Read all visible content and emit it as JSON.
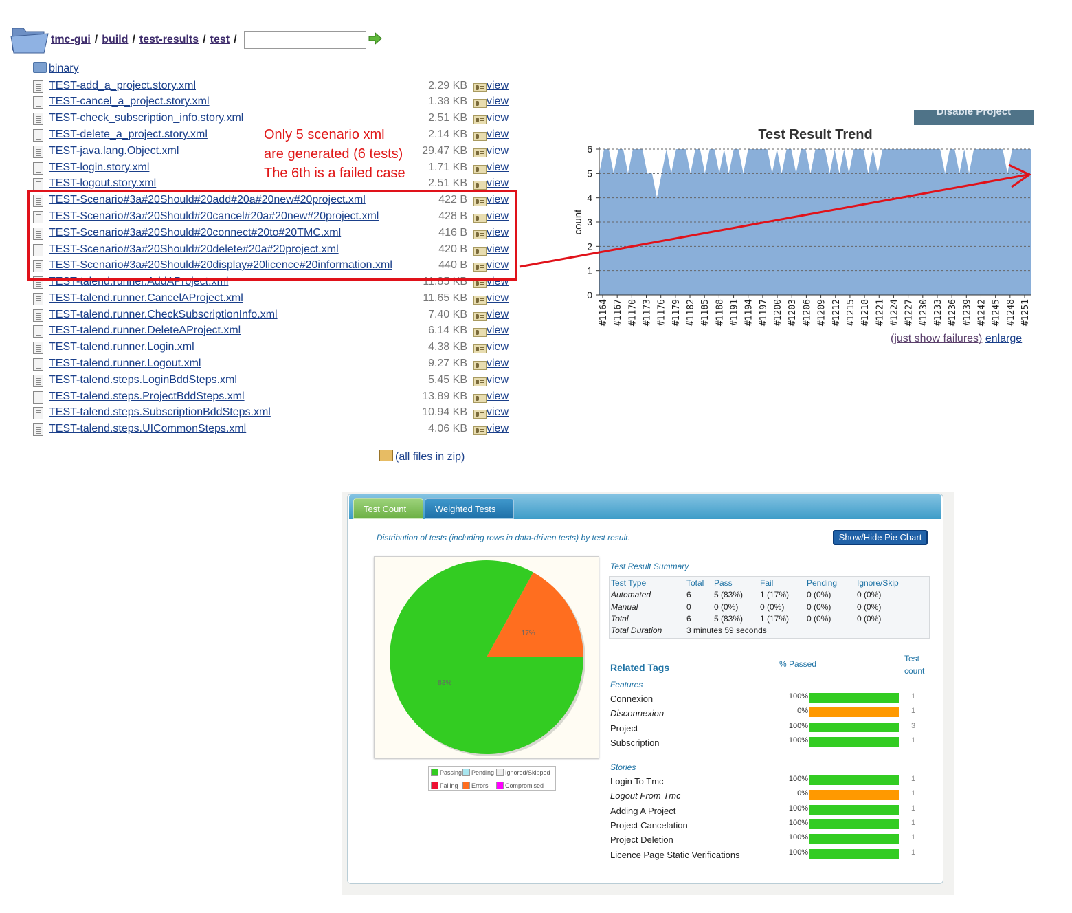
{
  "breadcrumb": {
    "items": [
      "tmc-gui",
      "build",
      "test-results",
      "test"
    ],
    "separator": "/",
    "path_input_value": ""
  },
  "binary_folder": "binary",
  "files": [
    {
      "name": "TEST-add_a_project.story.xml",
      "size": "2.29 KB"
    },
    {
      "name": "TEST-cancel_a_project.story.xml",
      "size": "1.38 KB"
    },
    {
      "name": "TEST-check_subscription_info.story.xml",
      "size": "2.51 KB"
    },
    {
      "name": "TEST-delete_a_project.story.xml",
      "size": "2.14 KB"
    },
    {
      "name": "TEST-java.lang.Object.xml",
      "size": "29.47 KB"
    },
    {
      "name": "TEST-login.story.xml",
      "size": "1.71 KB"
    },
    {
      "name": "TEST-logout.story.xml",
      "size": "2.51 KB"
    },
    {
      "name": "TEST-Scenario#3a#20Should#20add#20a#20new#20project.xml",
      "size": "422 B"
    },
    {
      "name": "TEST-Scenario#3a#20Should#20cancel#20a#20new#20project.xml",
      "size": "428 B"
    },
    {
      "name": "TEST-Scenario#3a#20Should#20connect#20to#20TMC.xml",
      "size": "416 B"
    },
    {
      "name": "TEST-Scenario#3a#20Should#20delete#20a#20project.xml",
      "size": "420 B"
    },
    {
      "name": "TEST-Scenario#3a#20Should#20display#20licence#20information.xml",
      "size": "440 B"
    },
    {
      "name": "TEST-talend.runner.AddAProject.xml",
      "size": "11.85 KB"
    },
    {
      "name": "TEST-talend.runner.CancelAProject.xml",
      "size": "11.65 KB"
    },
    {
      "name": "TEST-talend.runner.CheckSubscriptionInfo.xml",
      "size": "7.40 KB"
    },
    {
      "name": "TEST-talend.runner.DeleteAProject.xml",
      "size": "6.14 KB"
    },
    {
      "name": "TEST-talend.runner.Login.xml",
      "size": "4.38 KB"
    },
    {
      "name": "TEST-talend.runner.Logout.xml",
      "size": "9.27 KB"
    },
    {
      "name": "TEST-talend.steps.LoginBddSteps.xml",
      "size": "5.45 KB"
    },
    {
      "name": "TEST-talend.steps.ProjectBddSteps.xml",
      "size": "13.89 KB"
    },
    {
      "name": "TEST-talend.steps.SubscriptionBddSteps.xml",
      "size": "10.94 KB"
    },
    {
      "name": "TEST-talend.steps.UICommonSteps.xml",
      "size": "4.06 KB"
    }
  ],
  "view_label": "view",
  "annotation": [
    "Only 5 scenario xml",
    "are generated (6 tests)",
    "The 6th is a failed case"
  ],
  "all_files_zip": "(all files in zip)",
  "disable_button": "Disable Project",
  "chart_data": {
    "type": "area",
    "title": "Test Result Trend",
    "ylabel": "count",
    "ylim": [
      0,
      6
    ],
    "yticks": [
      0,
      1,
      2,
      3,
      4,
      5,
      6
    ],
    "x_tick_labels": [
      "#1164",
      "#1167",
      "#1170",
      "#1173",
      "#1176",
      "#1179",
      "#1182",
      "#1185",
      "#1188",
      "#1191",
      "#1194",
      "#1197",
      "#1200",
      "#1203",
      "#1206",
      "#1209",
      "#1212",
      "#1215",
      "#1218",
      "#1221",
      "#1224",
      "#1227",
      "#1230",
      "#1233",
      "#1236",
      "#1239",
      "#1242",
      "#1245",
      "#1248",
      "#1251"
    ],
    "series": [
      {
        "values": [
          5,
          6,
          6,
          5,
          6,
          6,
          5,
          6,
          6,
          6,
          5,
          5,
          4,
          5,
          6,
          5,
          6,
          6,
          6,
          5,
          6,
          6,
          5,
          6,
          6,
          5,
          6,
          5,
          6,
          6,
          5,
          6,
          6,
          6,
          6,
          6,
          5,
          6,
          5,
          6,
          6,
          5,
          6,
          6,
          5,
          6,
          6,
          6,
          5,
          6,
          5,
          6,
          5,
          6,
          6,
          6,
          5,
          6,
          5,
          6,
          6,
          6,
          6,
          6,
          6,
          6,
          6,
          6,
          6,
          6,
          6,
          6,
          5,
          6,
          6,
          5,
          6,
          5,
          6,
          6,
          6,
          6,
          6,
          6,
          6,
          5,
          6,
          6,
          6,
          6,
          6
        ]
      }
    ]
  },
  "chart_links": {
    "failures": "(just show failures)",
    "enlarge": "enlarge"
  },
  "dashboard": {
    "tabs": [
      "Test Count",
      "Weighted Tests"
    ],
    "distribution_text": "Distribution of tests (including rows in data-driven tests) by test result.",
    "show_hide_button": "Show/Hide Pie Chart",
    "pie": {
      "slices": [
        {
          "label": "Passing",
          "value": 83,
          "text": "83%",
          "color": "#33cc22"
        },
        {
          "label": "Errors",
          "value": 17,
          "text": "17%",
          "color": "#ff6e1f"
        }
      ],
      "legend": [
        {
          "label": "Passing",
          "color": "#33cc22"
        },
        {
          "label": "Pending",
          "color": "#a8e6f0"
        },
        {
          "label": "Ignored/Skipped",
          "color": "#eeeeee"
        },
        {
          "label": "Failing",
          "color": "#ee1133"
        },
        {
          "label": "Errors",
          "color": "#ff6e1f"
        },
        {
          "label": "Compromised",
          "color": "#ff00ff"
        }
      ]
    },
    "summary": {
      "title": "Test Result Summary",
      "headers": [
        "Test Type",
        "Total",
        "Pass",
        "Fail",
        "Pending",
        "Ignore/Skip"
      ],
      "rows": [
        [
          "Automated",
          "6",
          "5 (83%)",
          "1 (17%)",
          "0 (0%)",
          "0 (0%)"
        ],
        [
          "Manual",
          "0",
          "0 (0%)",
          "0 (0%)",
          "0 (0%)",
          "0 (0%)"
        ],
        [
          "Total",
          "6",
          "5 (83%)",
          "1 (17%)",
          "0 (0%)",
          "0 (0%)"
        ]
      ],
      "duration_label": "Total Duration",
      "duration_value": "3 minutes 59 seconds"
    },
    "related_tags": {
      "title": "Related Tags",
      "pct_header": "% Passed",
      "count_header": [
        "Test",
        "count"
      ],
      "groups": [
        {
          "title": "Features",
          "rows": [
            {
              "name": "Connexion",
              "pct": "100%",
              "count": "1",
              "passed": true
            },
            {
              "name": "Disconnexion",
              "pct": "0%",
              "count": "1",
              "passed": false
            },
            {
              "name": "Project",
              "pct": "100%",
              "count": "3",
              "passed": true
            },
            {
              "name": "Subscription",
              "pct": "100%",
              "count": "1",
              "passed": true
            }
          ]
        },
        {
          "title": "Stories",
          "rows": [
            {
              "name": "Login To Tmc",
              "pct": "100%",
              "count": "1",
              "passed": true
            },
            {
              "name": "Logout From Tmc",
              "pct": "0%",
              "count": "1",
              "passed": false
            },
            {
              "name": "Adding A Project",
              "pct": "100%",
              "count": "1",
              "passed": true
            },
            {
              "name": "Project Cancelation",
              "pct": "100%",
              "count": "1",
              "passed": true
            },
            {
              "name": "Project Deletion",
              "pct": "100%",
              "count": "1",
              "passed": true
            },
            {
              "name": "Licence Page Static Verifications",
              "pct": "100%",
              "count": "1",
              "passed": true
            }
          ]
        }
      ],
      "colors": {
        "pass": "#33cc22",
        "fail": "#ff9900"
      }
    }
  }
}
